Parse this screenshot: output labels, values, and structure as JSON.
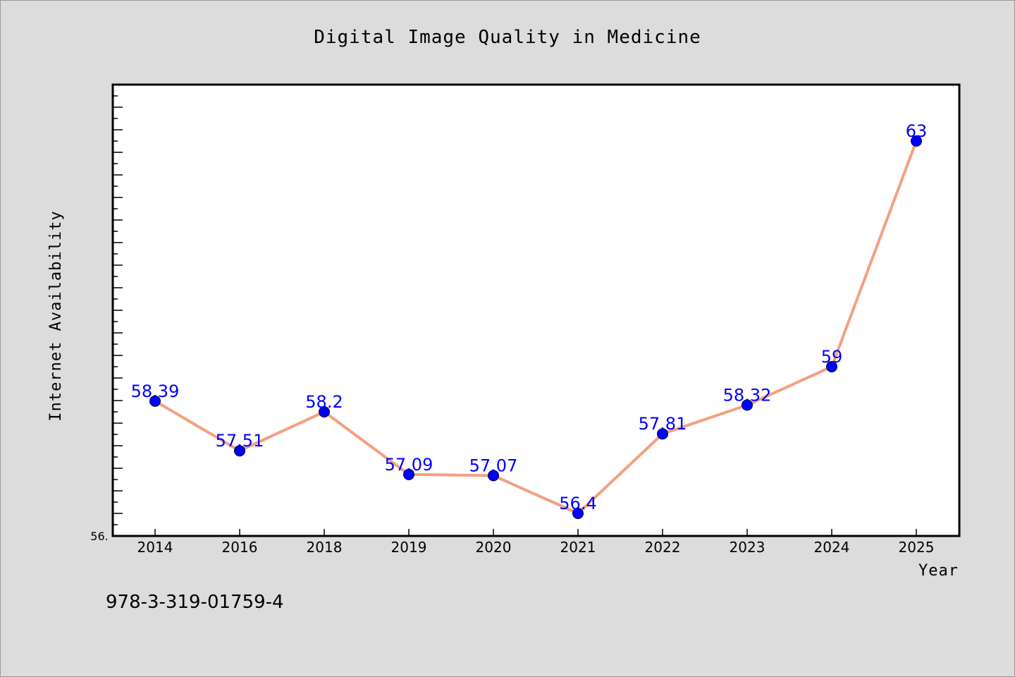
{
  "chart_data": {
    "type": "line",
    "title": "Digital Image Quality in Medicine",
    "xlabel": "Year",
    "ylabel": "Internet Availability",
    "categories": [
      "2014",
      "2016",
      "2018",
      "2019",
      "2020",
      "2021",
      "2022",
      "2023",
      "2024",
      "2025"
    ],
    "series": [
      {
        "values": [
          58.39,
          57.51,
          58.2,
          57.09,
          57.07,
          56.4,
          57.81,
          58.32,
          59,
          63
        ],
        "data_labels": [
          "58.39",
          "57.51",
          "58.2",
          "57.09",
          "57.07",
          "56.4",
          "57.81",
          "58.32",
          "59",
          "63"
        ],
        "line_color": "#f4a07e",
        "marker_color": "#0000ff"
      }
    ],
    "ylim": [
      56,
      64
    ],
    "y_axis_visible_label": "56.",
    "grid": false,
    "legend": "none",
    "plot_background": "#ffffff",
    "figure_background": "#dcdcdc",
    "data_label_color": "#0000ff"
  },
  "footnote": "978-3-319-01759-4"
}
